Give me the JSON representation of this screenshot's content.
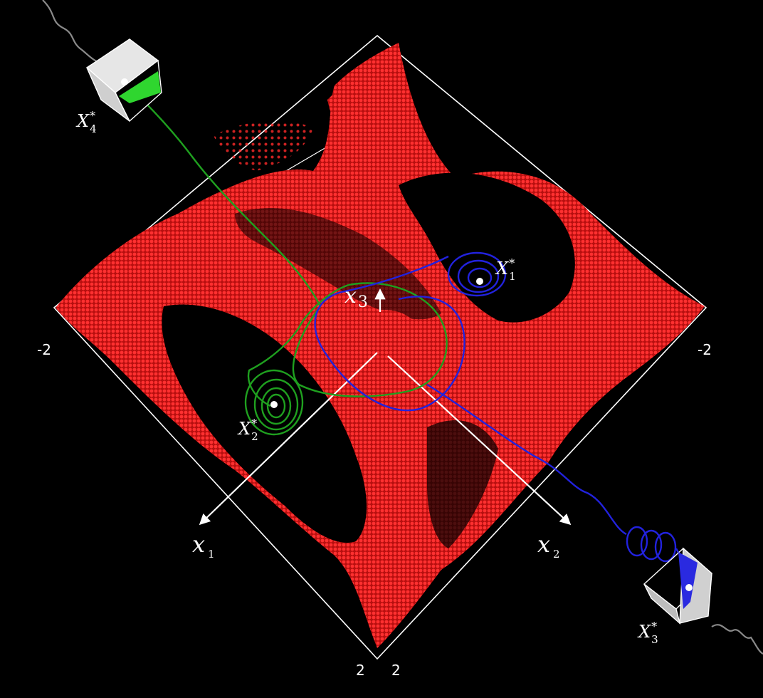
{
  "colors": {
    "background": "#000000",
    "attractor": "#ff2a2a",
    "attractor_dark": "#c81414",
    "trajectory_green": "#1fa01f",
    "trajectory_blue": "#2222dd",
    "box_edge": "#ffffff",
    "tail": "#8a8a8a"
  },
  "axes": {
    "x1": {
      "main": "x",
      "sub": "1"
    },
    "x2": {
      "main": "x",
      "sub": "2"
    },
    "x3": {
      "main": "x",
      "sub": "3"
    }
  },
  "ticks": {
    "left": "-2",
    "right": "-2",
    "bottom_left": "2",
    "bottom_right": "2"
  },
  "equilibria": [
    {
      "id": "X1",
      "main": "X",
      "sub": "1",
      "sup": "*",
      "trajectory_color": "blue"
    },
    {
      "id": "X2",
      "main": "X",
      "sub": "2",
      "sup": "*",
      "trajectory_color": "green"
    },
    {
      "id": "X3",
      "main": "X",
      "sub": "3",
      "sup": "*",
      "trajectory_color": "blue"
    },
    {
      "id": "X4",
      "main": "X",
      "sub": "4",
      "sup": "*",
      "trajectory_color": "green"
    }
  ]
}
